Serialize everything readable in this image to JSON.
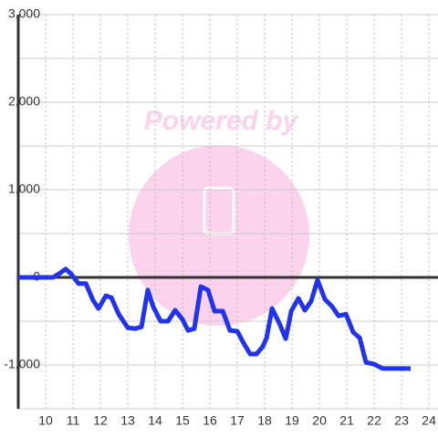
{
  "chart_data": {
    "type": "line",
    "watermark": "Powered by",
    "x": [
      9,
      10.27,
      10.53,
      10.73,
      10.93,
      11.2,
      11.47,
      11.73,
      11.93,
      12.2,
      12.4,
      12.67,
      13,
      13.27,
      13.5,
      13.73,
      13.93,
      14.2,
      14.47,
      14.73,
      15,
      15.2,
      15.43,
      15.67,
      15.93,
      16.17,
      16.47,
      16.73,
      17,
      17.23,
      17.47,
      17.7,
      17.93,
      18.07,
      18.27,
      18.53,
      18.77,
      18.97,
      19.23,
      19.47,
      19.7,
      19.93,
      20.2,
      20.47,
      20.7,
      20.97,
      21.23,
      21.47,
      21.7,
      22,
      22.3,
      23.33
    ],
    "series": [
      {
        "color": "#2233ee",
        "values": [
          0,
          0,
          50,
          95,
          40,
          -70,
          -70,
          -260,
          -355,
          -210,
          -230,
          -420,
          -575,
          -585,
          -565,
          -145,
          -335,
          -500,
          -500,
          -375,
          -480,
          -605,
          -585,
          -105,
          -145,
          -385,
          -385,
          -605,
          -615,
          -750,
          -875,
          -875,
          -790,
          -690,
          -355,
          -520,
          -700,
          -385,
          -240,
          -375,
          -270,
          -30,
          -250,
          -335,
          -440,
          -420,
          -625,
          -690,
          -970,
          -990,
          -1040,
          -1040
        ]
      }
    ],
    "xlim": [
      9,
      24.33
    ],
    "xticks": [
      10,
      11,
      12,
      13,
      14,
      15,
      16,
      17,
      18,
      19,
      20,
      21,
      22,
      23,
      24
    ],
    "ylim": [
      -1500,
      3000
    ],
    "yticks": [
      {
        "value": 3000,
        "label": "3,000"
      },
      {
        "value": 2000,
        "label": "2,000"
      },
      {
        "value": 1000,
        "label": "1,000"
      },
      0,
      {
        "value": -1000,
        "label": "-1,000"
      }
    ],
    "minor_yticks": [
      2500,
      1500,
      500,
      -500,
      -1500
    ],
    "grid": true
  }
}
